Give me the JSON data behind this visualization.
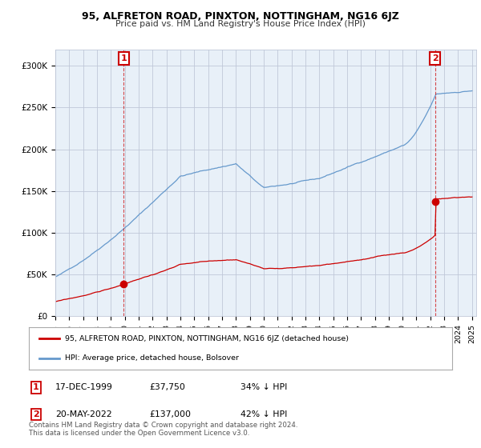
{
  "title": "95, ALFRETON ROAD, PINXTON, NOTTINGHAM, NG16 6JZ",
  "subtitle": "Price paid vs. HM Land Registry's House Price Index (HPI)",
  "ylim": [
    0,
    320000
  ],
  "yticks": [
    0,
    50000,
    100000,
    150000,
    200000,
    250000,
    300000
  ],
  "ytick_labels": [
    "£0",
    "£50K",
    "£100K",
    "£150K",
    "£200K",
    "£250K",
    "£300K"
  ],
  "sale1_date": "17-DEC-1999",
  "sale1_price": 37750,
  "sale1_label": "£37,750",
  "sale1_hpi_pct": "34% ↓ HPI",
  "sale2_date": "20-MAY-2022",
  "sale2_price": 137000,
  "sale2_label": "£137,000",
  "sale2_hpi_pct": "42% ↓ HPI",
  "legend_label_red": "95, ALFRETON ROAD, PINXTON, NOTTINGHAM, NG16 6JZ (detached house)",
  "legend_label_blue": "HPI: Average price, detached house, Bolsover",
  "footer": "Contains HM Land Registry data © Crown copyright and database right 2024.\nThis data is licensed under the Open Government Licence v3.0.",
  "red_color": "#cc0000",
  "blue_color": "#6699cc",
  "bg_plot_color": "#e8f0f8",
  "background_color": "#ffffff",
  "grid_color": "#c0c8d8"
}
